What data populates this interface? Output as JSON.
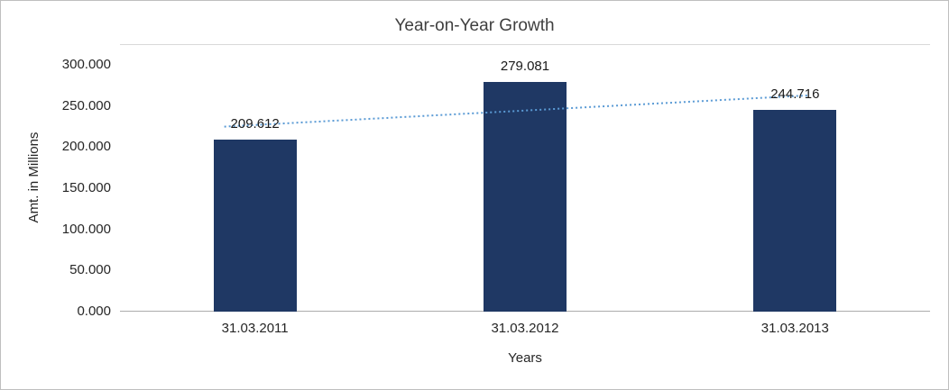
{
  "chart_data": {
    "type": "bar",
    "title": "Year-on-Year Growth",
    "xlabel": "Years",
    "ylabel": "Amt. in Millions",
    "categories": [
      "31.03.2011",
      "31.03.2012",
      "31.03.2013"
    ],
    "values": [
      209.612,
      279.081,
      244.716
    ],
    "data_labels": [
      "209.612",
      "279.081",
      "244.716"
    ],
    "y_ticks": [
      {
        "label": "300.000",
        "value": 300
      },
      {
        "label": "250.000",
        "value": 250
      },
      {
        "label": "200.000",
        "value": 200
      },
      {
        "label": "150.000",
        "value": 150
      },
      {
        "label": "100.000",
        "value": 100
      },
      {
        "label": "50.000",
        "value": 50
      },
      {
        "label": "0.000",
        "value": 0
      }
    ],
    "ylim": [
      0,
      300
    ],
    "bar_color": "#1F3864",
    "trendline": {
      "type": "linear",
      "style": "dotted",
      "color": "#5B9BD5",
      "start_value": 226.92,
      "end_value": 262.02
    },
    "grid": false,
    "legend": "none"
  }
}
